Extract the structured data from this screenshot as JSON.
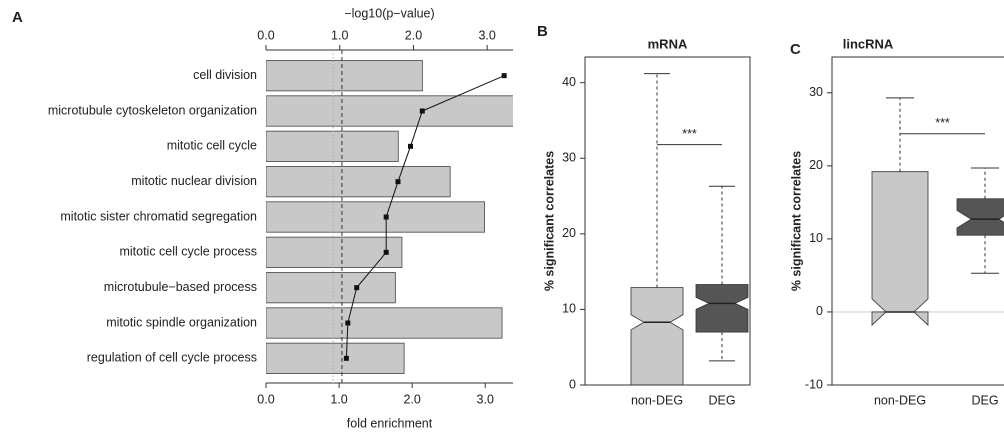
{
  "chart_data": [
    {
      "type": "bar",
      "orientation": "horizontal",
      "panel": "A",
      "categories": [
        "cell division",
        "microtubule cytoskeleton organization",
        "mitotic cell cycle",
        "mitotic nuclear division",
        "mitotic sister chromatid segregation",
        "mitotic cell cycle process",
        "microtubule−based process",
        "mitotic spindle organization",
        "regulation of cell cycle process"
      ],
      "series": [
        {
          "values": [
            2.14,
            3.5,
            1.81,
            2.52,
            2.99,
            1.86,
            1.77,
            3.23,
            1.89
          ],
          "color": "#c8c8c8"
        },
        {
          "type": "line",
          "axis": "x2",
          "values": [
            3.23,
            2.12,
            1.96,
            1.79,
            1.63,
            1.63,
            1.23,
            1.11,
            1.09
          ],
          "color": "#111111"
        }
      ],
      "xlabel": "fold enrichment",
      "xlim": [
        0,
        3.38
      ],
      "xticks": [
        {
          "value": 0,
          "label": "0.0"
        },
        {
          "value": 1,
          "label": "1.0"
        },
        {
          "value": 2,
          "label": "2.0"
        },
        {
          "value": 3,
          "label": "3.0"
        }
      ],
      "x2label": "−log10(p−value)",
      "x2lim": [
        0,
        3.35
      ],
      "x2ticks": [
        {
          "value": 0,
          "label": "0.0"
        },
        {
          "value": 1,
          "label": "1.0"
        },
        {
          "value": 2,
          "label": "2.0"
        },
        {
          "value": 3,
          "label": "3.0"
        }
      ],
      "vlines": [
        {
          "value": 0.91,
          "axis": "x2",
          "style": "dotted",
          "color": "#aaaaaa"
        },
        {
          "value": 1.03,
          "axis": "x2",
          "style": "dashed",
          "color": "#333333"
        }
      ]
    },
    {
      "type": "box",
      "panel": "B",
      "title": "mRNA",
      "ylabel": "% significant correlates",
      "categories": [
        "non-DEG",
        "DEG"
      ],
      "boxes": [
        {
          "whisker_low": 0,
          "q1": 0,
          "median": 8.3,
          "q3": 12.9,
          "whisker_high": 41.2,
          "notch": [
            7.3,
            9.3
          ],
          "color": "#c8c8c8"
        },
        {
          "whisker_low": 3.2,
          "q1": 7.0,
          "median": 10.8,
          "q3": 13.3,
          "whisker_high": 26.3,
          "notch": [
            10.0,
            11.6
          ],
          "color": "#555555"
        }
      ],
      "ylim": [
        0,
        43.4
      ],
      "yticks": [
        0,
        10,
        20,
        30,
        40
      ],
      "significance": {
        "label": "***",
        "y": 31.8
      }
    },
    {
      "type": "box",
      "panel": "C",
      "title": "lincRNA",
      "ylabel": "% significant correlates",
      "categories": [
        "non-DEG",
        "DEG"
      ],
      "boxes": [
        {
          "whisker_low": 0,
          "q1": 0,
          "median": 0,
          "q3": 19.2,
          "whisker_high": 29.3,
          "notch": [
            -1.8,
            1.8
          ],
          "color": "#c8c8c8"
        },
        {
          "whisker_low": 5.3,
          "q1": 10.5,
          "median": 12.7,
          "q3": 15.5,
          "whisker_high": 19.7,
          "notch": [
            11.5,
            13.9
          ],
          "color": "#555555"
        }
      ],
      "ylim": [
        -10,
        34.9
      ],
      "yticks": [
        -10,
        0,
        10,
        20,
        30
      ],
      "hline": 0,
      "significance": {
        "label": "***",
        "y": 24.4
      }
    }
  ]
}
